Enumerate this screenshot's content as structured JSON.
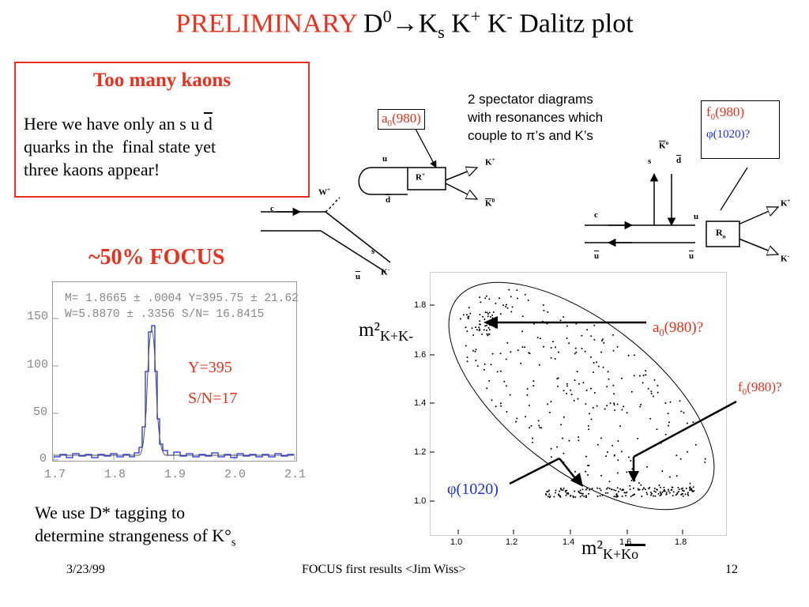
{
  "slide": {
    "title_prefix": "PRELIMINARY",
    "title_main": "D",
    "title_sup0": "0",
    "title_arrow": "→",
    "title_ks": "K",
    "title_ks_sub": "s",
    "title_kp": "K",
    "title_kp_sup": "+",
    "title_km": "K",
    "title_km_sup": "-",
    "title_suffix": "Dalitz plot",
    "date": "3/23/99",
    "footer": "FOCUS first results <Jim Wiss>",
    "page": "12"
  },
  "kaons_box": {
    "heading": "Too many kaons",
    "line1_pre": "Here we have only an s u ",
    "line1_dbar": "d",
    "line2": "quarks in the  final state yet",
    "line3": "three kaons appear!"
  },
  "focus_label": "~50% FOCUS",
  "histogram": {
    "fit_line1": "M= 1.8665 ± .0004 Y=395.75 ± 21.62",
    "fit_line2": "W=5.8870 ± .3356 S/N= 16.8415",
    "y_ticks": [
      "0",
      "50",
      "100",
      "150"
    ],
    "x_ticks": [
      "1.7",
      "1.8",
      "1.9",
      "2.0",
      "2.1"
    ],
    "yield_label": "Y=395",
    "sn_label": "S/N=17"
  },
  "tagging_text": {
    "line1": "We use D* tagging to",
    "line2_pre": "determine strangeness of K°",
    "line2_sub": "s"
  },
  "spectator": {
    "line1": "2 spectator diagrams",
    "line2": "with resonances which",
    "line3_pre": "couple to ",
    "line3_pi": "π",
    "line3_post": "’s and K’s",
    "a0_label": "a",
    "a0_sub": "0",
    "a0_mass": "(980)",
    "f0_label": "f",
    "f0_sub": "0",
    "f0_mass": "(980)",
    "phi_label": "φ(1020)?"
  },
  "feynman_left": {
    "u_top": "u",
    "dbar": "d",
    "R_label": "R",
    "R_sup": "+",
    "Kplus": "K",
    "Kplus_sup": "+",
    "K0bar": "K",
    "K0bar_sup": "0",
    "W": "W",
    "W_sup": "+",
    "c": "c",
    "s": "s",
    "ubar": "u",
    "Kminus": "K",
    "Kminus_sup": "-"
  },
  "feynman_right": {
    "K0": "K",
    "K0_sup": "o",
    "s": "s",
    "dbar": "d",
    "c": "c",
    "u": "u",
    "R_label": "R",
    "R_sub": "o",
    "ubar1": "u",
    "ubar2": "u",
    "Kplus": "K",
    "Kplus_sup": "+",
    "Kminus": "K",
    "Kminus_sup": "-"
  },
  "dalitz": {
    "y_ticks": [
      "1.0",
      "1.2",
      "1.4",
      "1.6",
      "1.8"
    ],
    "x_ticks": [
      "1.0",
      "1.2",
      "1.4",
      "1.6",
      "1.8"
    ],
    "ylabel_main": "m²",
    "ylabel_sub": "K+K-",
    "xlabel_main": "m²",
    "xlabel_sub": "K+Ko",
    "a0_ann": "a",
    "a0_ann_sub": "0",
    "a0_ann_mass": "(980)?",
    "f0_ann": "f",
    "f0_ann_sub": "0",
    "f0_ann_mass": "(980)?",
    "phi_ann": "φ(1020)"
  },
  "colors": {
    "accent_red": "#e8301c",
    "phi_blue": "#1c2fe8"
  }
}
